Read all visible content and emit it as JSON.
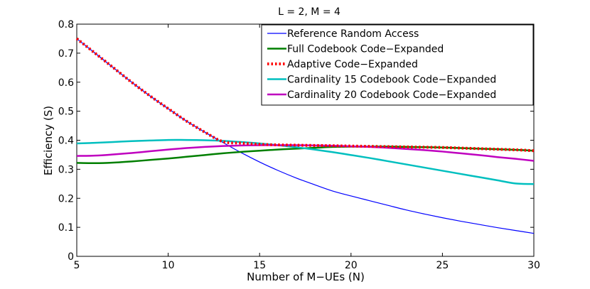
{
  "chart_data": {
    "type": "line",
    "title": "L = 2, M = 4",
    "xlabel": "Number of M−UEs (N)",
    "ylabel": "Efficiency (S)",
    "xlim": [
      5,
      30
    ],
    "ylim": [
      0,
      0.8
    ],
    "xticks": [
      5,
      10,
      15,
      20,
      25,
      30
    ],
    "yticks": [
      0,
      0.1,
      0.2,
      0.3,
      0.4,
      0.5,
      0.6,
      0.7,
      0.8
    ],
    "xtick_labels": [
      "5",
      "10",
      "15",
      "20",
      "25",
      "30"
    ],
    "ytick_labels": [
      "0",
      "0.1",
      "0.2",
      "0.3",
      "0.4",
      "0.5",
      "0.6",
      "0.7",
      "0.8"
    ],
    "legend_position": "top-right",
    "x": [
      5,
      6,
      7,
      8,
      9,
      10,
      11,
      12,
      13,
      14,
      15,
      16,
      17,
      18,
      19,
      20,
      21,
      22,
      23,
      24,
      25,
      26,
      27,
      28,
      29,
      30
    ],
    "series": [
      {
        "name": "Reference Random Access",
        "color": "#0000ff",
        "style": "solid",
        "width": 1.2,
        "values": [
          0.75,
          0.7,
          0.65,
          0.6,
          0.553,
          0.509,
          0.466,
          0.428,
          0.392,
          0.357,
          0.325,
          0.296,
          0.27,
          0.247,
          0.225,
          0.208,
          0.192,
          0.176,
          0.16,
          0.146,
          0.133,
          0.121,
          0.11,
          0.099,
          0.089,
          0.079
        ]
      },
      {
        "name": "Full Codebook Code−Expanded",
        "color": "#007f00",
        "style": "solid",
        "width": 2.5,
        "values": [
          0.322,
          0.321,
          0.323,
          0.327,
          0.332,
          0.337,
          0.343,
          0.349,
          0.355,
          0.36,
          0.364,
          0.368,
          0.371,
          0.374,
          0.377,
          0.378,
          0.378,
          0.378,
          0.377,
          0.376,
          0.375,
          0.373,
          0.371,
          0.369,
          0.367,
          0.364
        ]
      },
      {
        "name": "Adaptive Code−Expanded",
        "color": "#ff0000",
        "style": "dotted",
        "width": 4,
        "values": [
          0.75,
          0.7,
          0.65,
          0.6,
          0.553,
          0.509,
          0.466,
          0.428,
          0.395,
          0.39,
          0.386,
          0.384,
          0.383,
          0.382,
          0.381,
          0.38,
          0.379,
          0.378,
          0.377,
          0.376,
          0.375,
          0.373,
          0.371,
          0.369,
          0.367,
          0.364
        ]
      },
      {
        "name": "Cardinality 15 Codebook Code−Expanded",
        "color": "#00bfbf",
        "style": "solid",
        "width": 2.5,
        "values": [
          0.389,
          0.391,
          0.394,
          0.397,
          0.399,
          0.401,
          0.401,
          0.4,
          0.398,
          0.394,
          0.389,
          0.383,
          0.376,
          0.368,
          0.359,
          0.349,
          0.339,
          0.328,
          0.317,
          0.306,
          0.295,
          0.284,
          0.273,
          0.262,
          0.251,
          0.249
        ]
      },
      {
        "name": "Cardinality 20 Codebook Code−Expanded",
        "color": "#bf00bf",
        "style": "solid",
        "width": 2.5,
        "values": [
          0.346,
          0.347,
          0.351,
          0.356,
          0.362,
          0.368,
          0.373,
          0.377,
          0.38,
          0.382,
          0.383,
          0.383,
          0.383,
          0.382,
          0.381,
          0.379,
          0.377,
          0.374,
          0.37,
          0.366,
          0.361,
          0.355,
          0.349,
          0.342,
          0.336,
          0.329
        ]
      }
    ]
  }
}
